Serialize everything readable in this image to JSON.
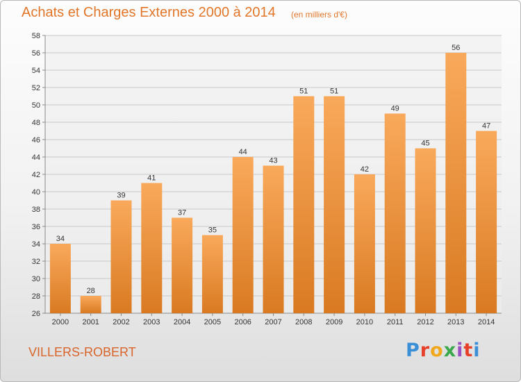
{
  "header": {
    "title": "Achats et Charges Externes 2000 à 2014",
    "subtitle": "(en milliers d'€)"
  },
  "footer": {
    "commune": "VILLERS-ROBERT",
    "logo_text": "Proxiti"
  },
  "colors": {
    "accent": "#e1762a",
    "bar_top": "#f9a95b",
    "bar_bottom": "#d97a22",
    "grid": "#c8c8c8"
  },
  "chart_data": {
    "type": "bar",
    "categories": [
      "2000",
      "2001",
      "2002",
      "2003",
      "2004",
      "2005",
      "2006",
      "2007",
      "2008",
      "2009",
      "2010",
      "2011",
      "2012",
      "2013",
      "2014"
    ],
    "values": [
      34,
      28,
      39,
      41,
      37,
      35,
      44,
      43,
      51,
      51,
      42,
      49,
      45,
      56,
      47
    ],
    "title": "Achats et Charges Externes 2000 à 2014",
    "subtitle": "(en milliers d'€)",
    "xlabel": "",
    "ylabel": "",
    "ylim": [
      26,
      58
    ],
    "ytick_step": 2,
    "grid": true,
    "data_labels": true
  }
}
